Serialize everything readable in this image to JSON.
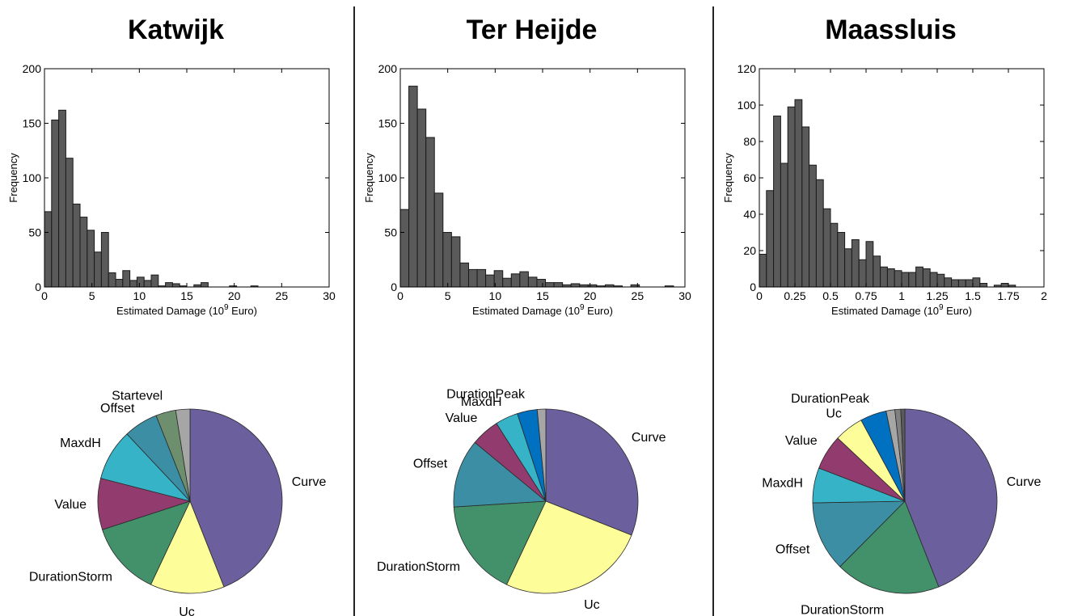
{
  "colors": {
    "bar_fill": "#5a5a5a",
    "bar_stroke": "#1a1a1a",
    "divider": "#222222"
  },
  "chart_data": [
    {
      "type": "bar",
      "title": "Katwijk",
      "xlabel": "Estimated Damage (10",
      "xlabel_sup": "9",
      "xlabel_suffix": " Euro)",
      "ylabel": "Frequency",
      "xlim": [
        0,
        30
      ],
      "ylim": [
        0,
        200
      ],
      "xticks": [
        0,
        5,
        10,
        15,
        20,
        25,
        30
      ],
      "yticks": [
        0,
        50,
        100,
        150,
        200
      ],
      "bin_width": 0.75,
      "x_start": 0,
      "values": [
        69,
        153,
        162,
        118,
        76,
        64,
        52,
        32,
        50,
        13,
        7,
        15,
        6,
        9,
        6,
        11,
        1,
        4,
        3,
        1,
        0,
        2,
        4,
        0,
        0,
        0,
        1,
        0,
        0,
        1,
        0,
        0,
        0,
        0,
        0,
        0,
        0,
        0,
        0,
        0
      ]
    },
    {
      "type": "pie",
      "title": "Katwijk",
      "slices": [
        {
          "label": "Curve",
          "value": 44,
          "color": "#6b5f9e"
        },
        {
          "label": "Uc",
          "value": 13,
          "color": "#fdfd9a"
        },
        {
          "label": "DurationStorm",
          "value": 13,
          "color": "#42916a"
        },
        {
          "label": "Value",
          "value": 9,
          "color": "#923b6f"
        },
        {
          "label": "MaxdH",
          "value": 9,
          "color": "#36b3c6"
        },
        {
          "label": "Offset",
          "value": 6,
          "color": "#3b8ea3"
        },
        {
          "label": "Startevel",
          "value": 3.5,
          "color": "#6e8f6e"
        },
        {
          "label": "",
          "value": 2.5,
          "color": "#a6a6a6"
        }
      ]
    },
    {
      "type": "bar",
      "title": "Ter Heijde",
      "xlabel": "Estimated Damage (10",
      "xlabel_sup": "9",
      "xlabel_suffix": " Euro)",
      "ylabel": "Frequency",
      "xlim": [
        0,
        30
      ],
      "ylim": [
        0,
        200
      ],
      "xticks": [
        0,
        5,
        10,
        15,
        20,
        25,
        30
      ],
      "yticks": [
        0,
        50,
        100,
        150,
        200
      ],
      "bin_width": 0.9,
      "x_start": 0,
      "values": [
        71,
        184,
        163,
        137,
        86,
        50,
        46,
        22,
        16,
        16,
        11,
        15,
        8,
        12,
        14,
        9,
        7,
        4,
        4,
        2,
        3,
        2,
        2,
        1,
        2,
        1,
        0,
        2,
        0,
        0,
        0,
        1,
        0,
        0,
        0,
        0
      ]
    },
    {
      "type": "pie",
      "title": "Ter Heijde",
      "slices": [
        {
          "label": "Curve",
          "value": 31,
          "color": "#6b5f9e"
        },
        {
          "label": "Uc",
          "value": 26,
          "color": "#fdfd9a"
        },
        {
          "label": "DurationStorm",
          "value": 17,
          "color": "#42916a"
        },
        {
          "label": "Offset",
          "value": 12,
          "color": "#3b8ea3"
        },
        {
          "label": "Value",
          "value": 5,
          "color": "#923b6f"
        },
        {
          "label": "MaxdH",
          "value": 4,
          "color": "#36b3c6"
        },
        {
          "label": "DurationPeak",
          "value": 3.5,
          "color": "#0070c0"
        },
        {
          "label": "",
          "value": 1.5,
          "color": "#a6a6a6"
        }
      ]
    },
    {
      "type": "bar",
      "title": "Maassluis",
      "xlabel": "Estimated Damage (10",
      "xlabel_sup": "9",
      "xlabel_suffix": " Euro)",
      "ylabel": "Frequency",
      "xlim": [
        0,
        2
      ],
      "ylim": [
        0,
        120
      ],
      "xticks": [
        0,
        0.25,
        0.5,
        0.75,
        1,
        1.25,
        1.5,
        1.75,
        2
      ],
      "xtick_labels": [
        "0",
        "0.25",
        "0.5",
        "0.75",
        "1",
        "1.25",
        "1.5",
        "1.75",
        "2"
      ],
      "yticks": [
        0,
        20,
        40,
        60,
        80,
        100,
        120
      ],
      "bin_width": 0.05,
      "x_start": 0,
      "values": [
        18,
        53,
        94,
        68,
        99,
        103,
        88,
        67,
        59,
        43,
        35,
        30,
        21,
        26,
        15,
        25,
        17,
        11,
        10,
        9,
        8,
        8,
        11,
        10,
        8,
        7,
        5,
        4,
        4,
        4,
        5,
        2,
        0,
        1,
        2,
        1
      ]
    },
    {
      "type": "pie",
      "title": "Maassluis",
      "slices": [
        {
          "label": "Curve",
          "value": 43,
          "color": "#6b5f9e"
        },
        {
          "label": "DurationStorm",
          "value": 18,
          "color": "#42916a"
        },
        {
          "label": "Offset",
          "value": 12,
          "color": "#3b8ea3"
        },
        {
          "label": "MaxdH",
          "value": 6,
          "color": "#36b3c6"
        },
        {
          "label": "Value",
          "value": 6,
          "color": "#923b6f"
        },
        {
          "label": "Uc",
          "value": 5,
          "color": "#fdfd9a"
        },
        {
          "label": "DurationPeak",
          "value": 4.5,
          "color": "#0070c0"
        },
        {
          "label": "",
          "value": 1.5,
          "color": "#a6a6a6"
        },
        {
          "label": "",
          "value": 1.0,
          "color": "#808080"
        },
        {
          "label": "",
          "value": 0.7,
          "color": "#5a5a5a"
        }
      ]
    }
  ]
}
